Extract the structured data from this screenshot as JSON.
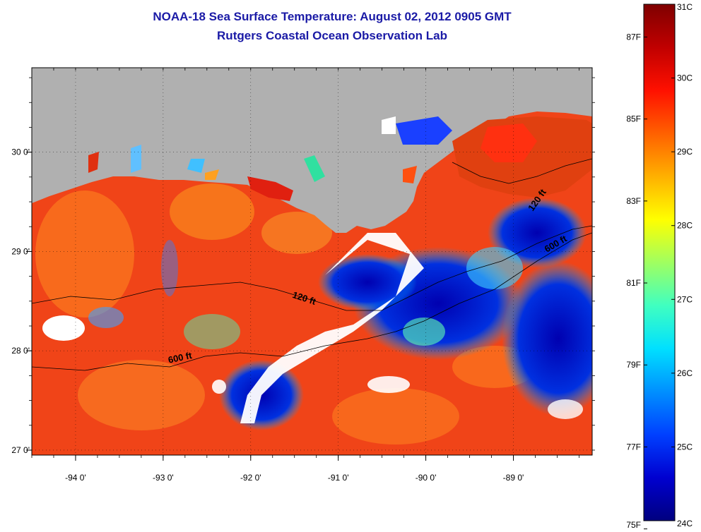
{
  "title": {
    "line1": "NOAA-18 Sea Surface Temperature:  August 02, 2012 0905 GMT",
    "line2": "Rutgers Coastal Ocean Observation Lab"
  },
  "map": {
    "land_color": "#b0b0b0",
    "lon_range": [
      -94.5,
      -88.1
    ],
    "lat_range": [
      26.95,
      30.85
    ],
    "lon_ticks": [
      {
        "value": -94,
        "label": "-94 0'"
      },
      {
        "value": -93,
        "label": "-93 0'"
      },
      {
        "value": -92,
        "label": "-92 0'"
      },
      {
        "value": -91,
        "label": "-91 0'"
      },
      {
        "value": -90,
        "label": "-90 0'"
      },
      {
        "value": -89,
        "label": "-89 0'"
      }
    ],
    "lat_ticks": [
      {
        "value": 30,
        "label": "30 0'"
      },
      {
        "value": 29,
        "label": "29 0'"
      },
      {
        "value": 28,
        "label": "28 0'"
      },
      {
        "value": 27,
        "label": "27 0'"
      }
    ],
    "contour_labels": [
      {
        "text": "120 ft",
        "lon": -91.4,
        "lat": 28.5,
        "angle": 18
      },
      {
        "text": "600 ft",
        "lon": -92.8,
        "lat": 27.9,
        "angle": -12
      },
      {
        "text": "120 ft",
        "lon": -88.7,
        "lat": 29.5,
        "angle": -55
      },
      {
        "text": "600 ft",
        "lon": -88.5,
        "lat": 29.05,
        "angle": -30
      }
    ]
  },
  "colorbar": {
    "colors": [
      "#00007f",
      "#0000d0",
      "#0040ff",
      "#0090ff",
      "#00e0ff",
      "#40ffc0",
      "#a0ff60",
      "#ffff00",
      "#ffb000",
      "#ff6000",
      "#ff1000",
      "#c00000",
      "#7f0000"
    ],
    "fahrenheit": [
      {
        "value": 75,
        "label": "75F"
      },
      {
        "value": 77,
        "label": "77F"
      },
      {
        "value": 79,
        "label": "79F"
      },
      {
        "value": 81,
        "label": "81F"
      },
      {
        "value": 83,
        "label": "83F"
      },
      {
        "value": 85,
        "label": "85F"
      },
      {
        "value": 87,
        "label": "87F"
      }
    ],
    "celsius": [
      {
        "value": 24,
        "label": "24C"
      },
      {
        "value": 25,
        "label": "25C"
      },
      {
        "value": 26,
        "label": "26C"
      },
      {
        "value": 27,
        "label": "27C"
      },
      {
        "value": 28,
        "label": "28C"
      },
      {
        "value": 29,
        "label": "29C"
      },
      {
        "value": 30,
        "label": "30C"
      },
      {
        "value": 31,
        "label": "31C"
      }
    ]
  }
}
